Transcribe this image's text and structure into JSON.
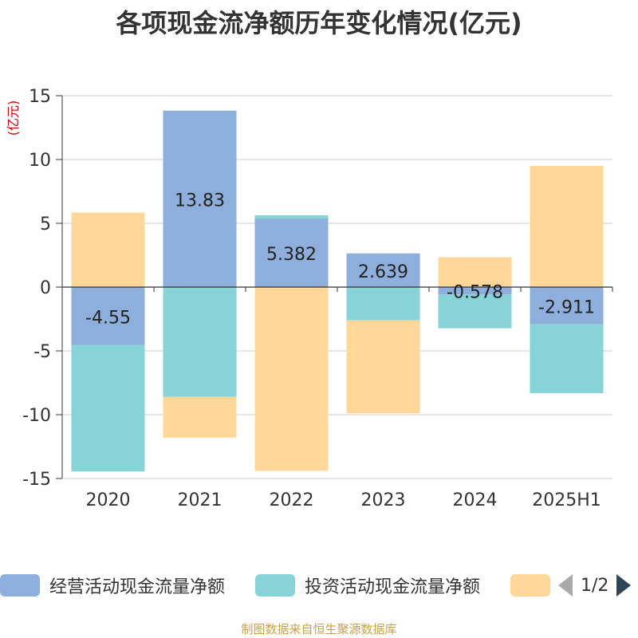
{
  "chart_data": {
    "type": "bar",
    "stacked": true,
    "title": "各项现金流净额历年变化情况(亿元)",
    "ylabel": "(亿元)",
    "categories": [
      "2020",
      "2021",
      "2022",
      "2023",
      "2024",
      "2025H1"
    ],
    "ylim": [
      -15,
      15
    ],
    "yticks": [
      15,
      10,
      5,
      0,
      -5,
      -10,
      -15
    ],
    "grid": true,
    "legend_position": "bottom",
    "series": [
      {
        "name": "经营活动现金流量净额",
        "color": "#8eaedb",
        "values": [
          -4.55,
          13.83,
          5.382,
          2.639,
          -0.578,
          -2.911
        ],
        "labels": [
          "-4.55",
          "13.83",
          "5.382",
          "2.639",
          "-0.578",
          "-2.911"
        ]
      },
      {
        "name": "投资活动现金流量净额",
        "color": "#86d4d8",
        "values": [
          -9.9,
          -8.6,
          0.25,
          -2.6,
          -2.65,
          -5.4
        ]
      },
      {
        "name": "",
        "color": "#ffd899",
        "values": [
          5.85,
          -3.2,
          -14.4,
          -7.3,
          2.35,
          9.5
        ]
      }
    ]
  },
  "legend": {
    "items": [
      {
        "label": "经营活动现金流量净额",
        "color": "#8eaedb"
      },
      {
        "label": "投资活动现金流量净额",
        "color": "#86d4d8"
      },
      {
        "label": "",
        "color": "#ffd899"
      }
    ],
    "pager": "1/2"
  },
  "source_note": "制图数据来自恒生聚源数据库"
}
